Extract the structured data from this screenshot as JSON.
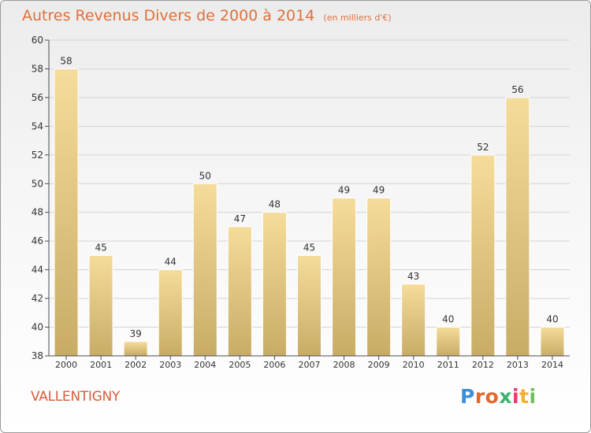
{
  "header": {
    "title": "Autres Revenus Divers de 2000 à 2014",
    "subtitle": "(en milliers d'€)"
  },
  "footer": {
    "commune": "VALLENTIGNY",
    "logo_text": "Proxiti",
    "logo_colors": [
      "#3a8fd6",
      "#e06a2c",
      "#e06a2c",
      "#3cb371",
      "#e63b6f",
      "#f2b035",
      "#6fc05a"
    ]
  },
  "colors": {
    "bar_top": "#f6dc9a",
    "bar_bottom": "#c8ac66",
    "axis": "#4a4a4a",
    "grid": "#d4d4d4",
    "text": "#333333"
  },
  "chart_data": {
    "type": "bar",
    "title": "Autres Revenus Divers de 2000 à 2014",
    "xlabel": "",
    "ylabel": "",
    "ylim": [
      38,
      60
    ],
    "yticks": [
      38,
      40,
      42,
      44,
      46,
      48,
      50,
      52,
      54,
      56,
      58,
      60
    ],
    "grid": true,
    "categories": [
      "2000",
      "2001",
      "2002",
      "2003",
      "2004",
      "2005",
      "2006",
      "2007",
      "2008",
      "2009",
      "2010",
      "2011",
      "2012",
      "2013",
      "2014"
    ],
    "values": [
      58,
      45,
      39,
      44,
      50,
      47,
      48,
      45,
      49,
      49,
      43,
      40,
      52,
      56,
      40
    ]
  }
}
